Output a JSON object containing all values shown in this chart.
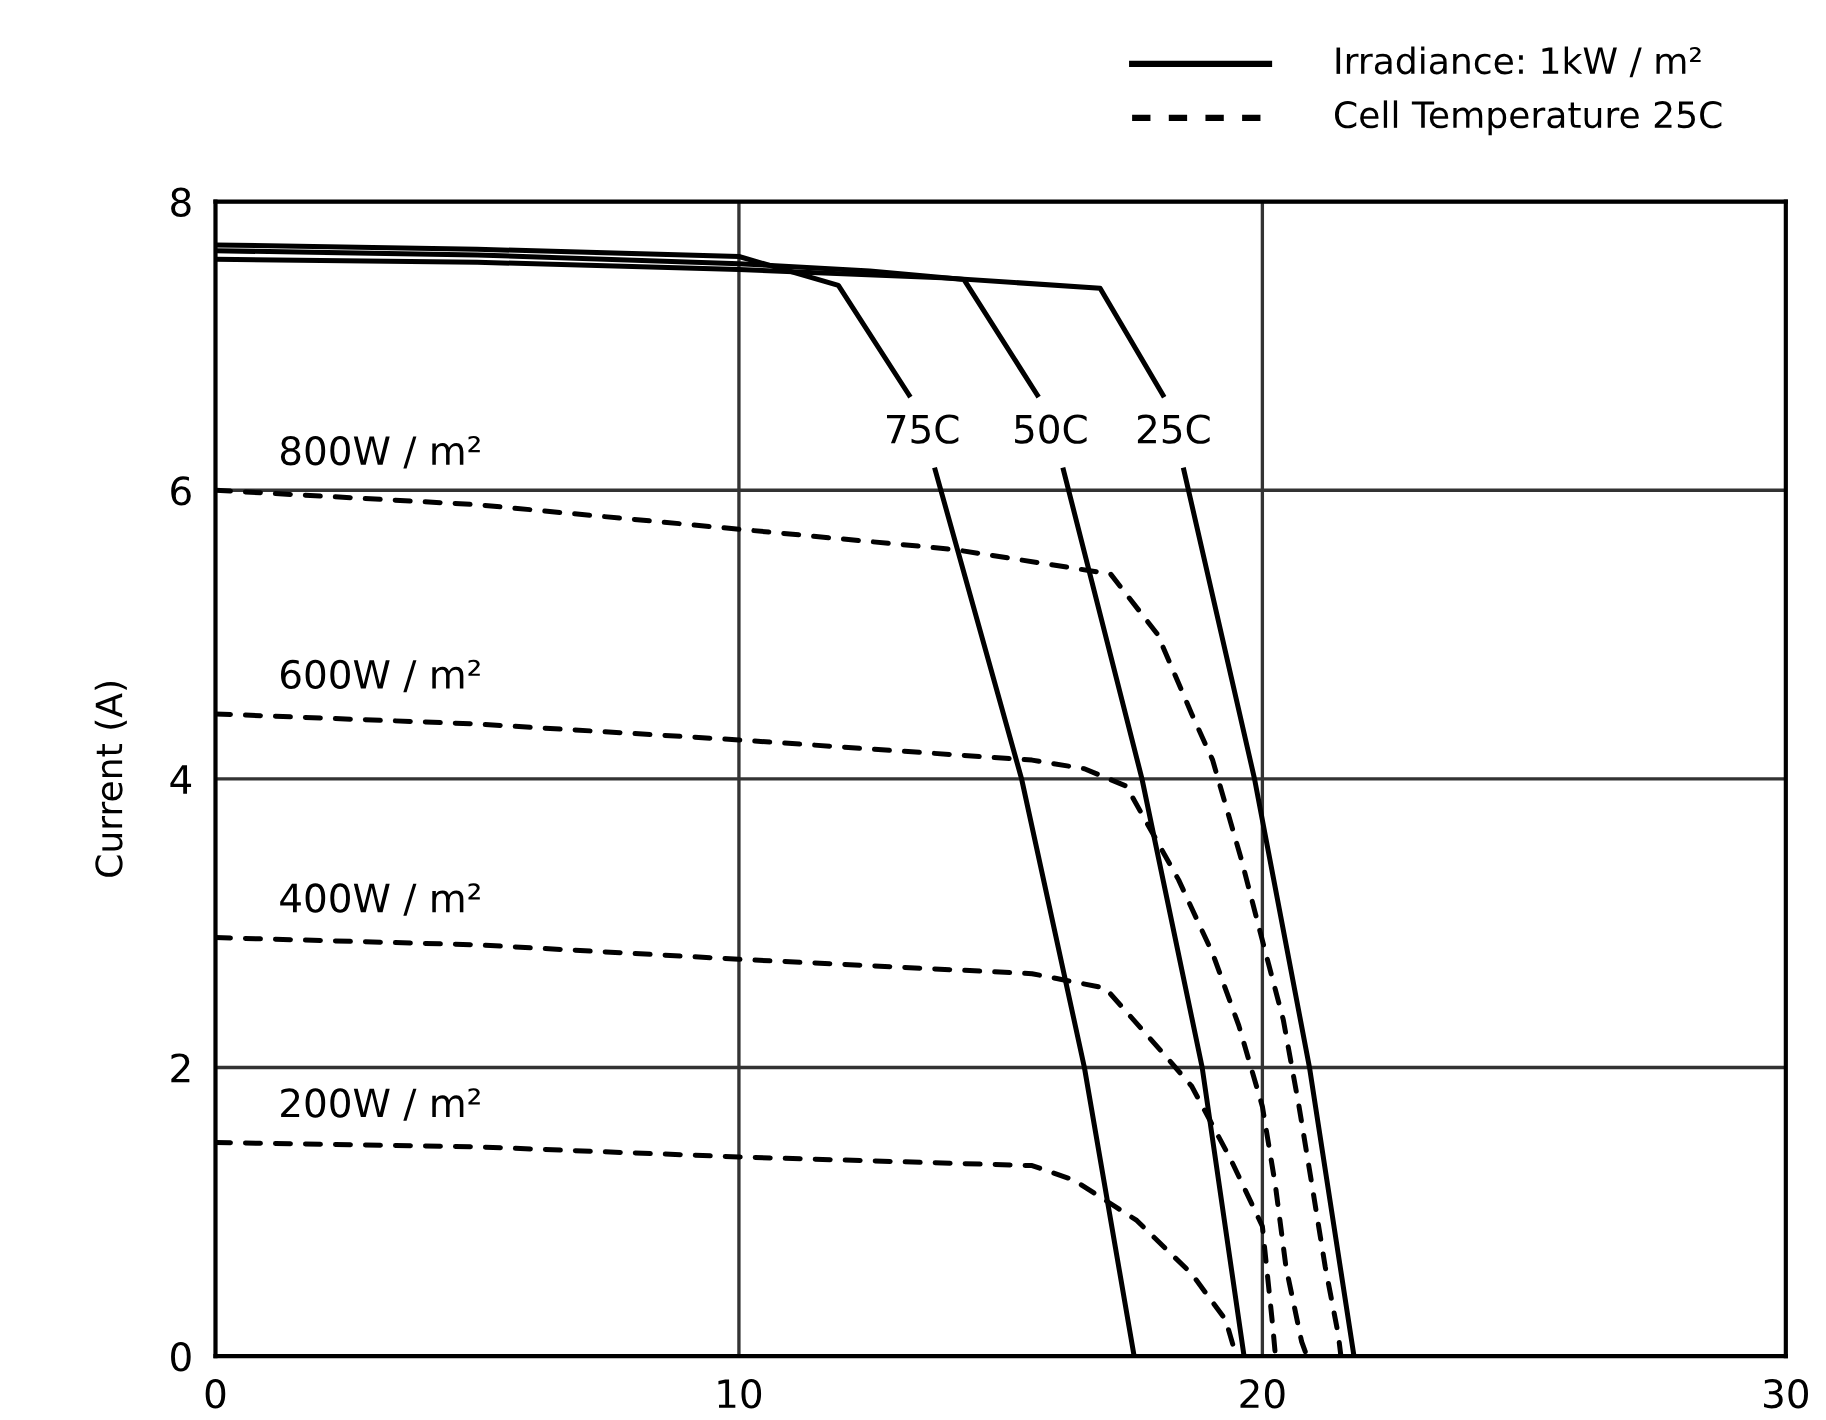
{
  "chart_data": {
    "type": "line",
    "ylabel": "Current (A)",
    "xlim": [
      0,
      30
    ],
    "ylim": [
      0,
      8
    ],
    "xticks": [
      0,
      10,
      20,
      30
    ],
    "yticks": [
      0,
      2,
      4,
      6,
      8
    ],
    "grid": true,
    "annotations": [
      "Irradiance: 1kW / m²",
      "Cell Temperature 25C"
    ],
    "series": [
      {
        "name": "75C",
        "color": "#000000",
        "line_style": "solid",
        "x": [
          0,
          5,
          10,
          11.9,
          13.25,
          13.5,
          13.75,
          15.4,
          16.6,
          17.55
        ],
        "values": [
          7.7,
          7.67,
          7.62,
          7.42,
          6.66,
          null,
          6.14,
          4.0,
          2.0,
          0
        ]
      },
      {
        "name": "50C",
        "color": "#000000",
        "line_style": "solid",
        "x": [
          0,
          5,
          10,
          12.5,
          14.3,
          15.7,
          15.95,
          16.2,
          17.7,
          18.85,
          19.65
        ],
        "values": [
          7.66,
          7.63,
          7.57,
          7.52,
          7.46,
          6.66,
          null,
          6.14,
          4.0,
          2.0,
          0
        ]
      },
      {
        "name": "25C",
        "color": "#000000",
        "line_style": "solid",
        "x": [
          0,
          5,
          10,
          14,
          16.9,
          18.1,
          18.3,
          18.5,
          19.85,
          20.9,
          21.75
        ],
        "values": [
          7.6,
          7.58,
          7.53,
          7.47,
          7.4,
          6.66,
          null,
          6.14,
          4.0,
          2.0,
          0
        ]
      },
      {
        "name": "800W / m²",
        "color": "#000000",
        "line_style": "dashed",
        "x": [
          0,
          5,
          10,
          14.1,
          17.1,
          18.0,
          18.65,
          19.05,
          19.6,
          20.0,
          20.4,
          20.7,
          20.95,
          21.2,
          21.45,
          21.5
        ],
        "values": [
          6.0,
          5.9,
          5.73,
          5.59,
          5.42,
          5.0,
          4.45,
          4.13,
          3.44,
          2.88,
          2.33,
          1.73,
          1.18,
          0.62,
          0.15,
          0
        ]
      },
      {
        "name": "600W / m²",
        "color": "#000000",
        "line_style": "dashed",
        "x": [
          0,
          5,
          10,
          15.6,
          16.6,
          17.4,
          18.4,
          19.05,
          19.55,
          20.0,
          20.25,
          20.45,
          20.75,
          20.85
        ],
        "values": [
          4.45,
          4.38,
          4.27,
          4.13,
          4.07,
          3.95,
          3.3,
          2.79,
          2.29,
          1.73,
          1.18,
          0.62,
          0.1,
          0
        ]
      },
      {
        "name": "400W / m²",
        "color": "#000000",
        "line_style": "dashed",
        "x": [
          0,
          5,
          10,
          15.6,
          17.0,
          18.1,
          18.65,
          19.4,
          20.0,
          20.2,
          20.25
        ],
        "values": [
          2.9,
          2.85,
          2.75,
          2.65,
          2.55,
          2.1,
          1.87,
          1.36,
          0.9,
          0.2,
          0
        ]
      },
      {
        "name": "200W / m²",
        "color": "#000000",
        "line_style": "dashed",
        "x": [
          0,
          5,
          10,
          15.6,
          16.4,
          17.6,
          18.65,
          19.3,
          19.5
        ],
        "values": [
          1.48,
          1.45,
          1.38,
          1.32,
          1.22,
          0.94,
          0.57,
          0.25,
          0
        ]
      }
    ]
  }
}
